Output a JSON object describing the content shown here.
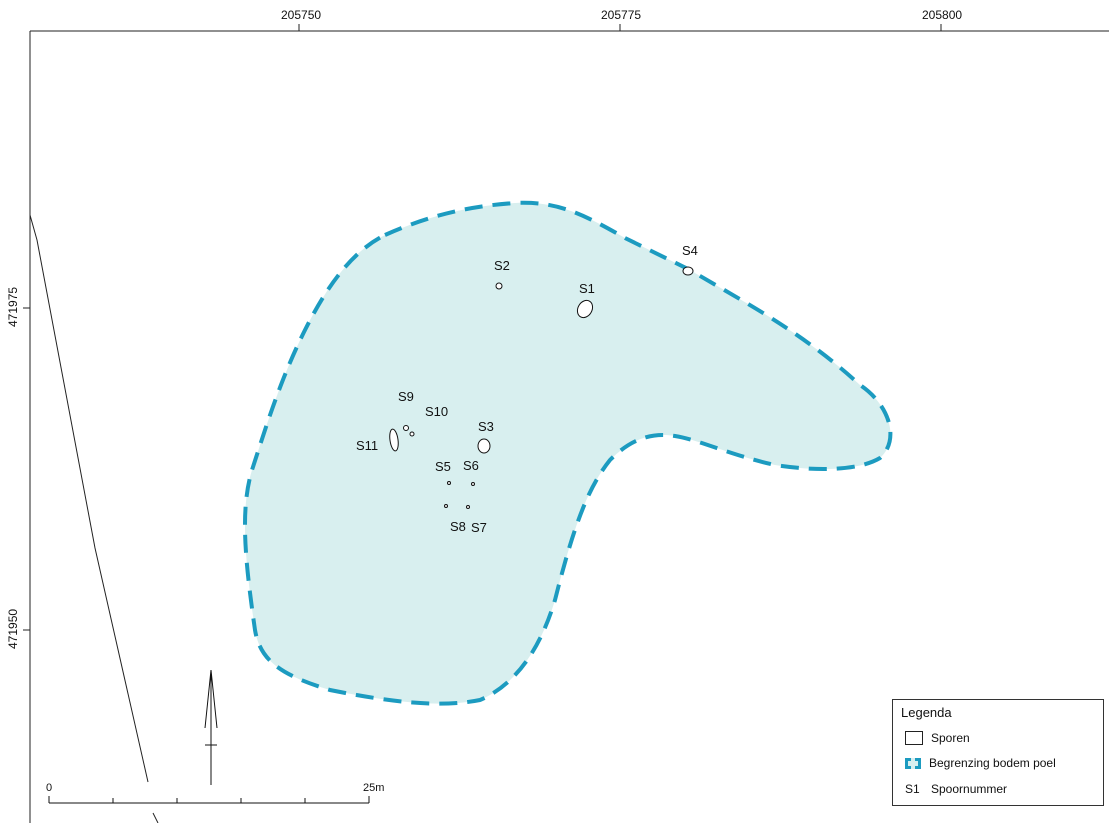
{
  "axes": {
    "x_ticks": [
      "205750",
      "205775",
      "205800"
    ],
    "y_ticks": [
      "471975",
      "471950"
    ]
  },
  "features": {
    "labels": [
      "S1",
      "S2",
      "S3",
      "S4",
      "S5",
      "S6",
      "S7",
      "S8",
      "S9",
      "S10",
      "S11"
    ]
  },
  "scale_bar": {
    "start": "0",
    "end": "25m"
  },
  "legend": {
    "title": "Legenda",
    "items": [
      {
        "symbol": "box",
        "label": "Sporen"
      },
      {
        "symbol": "poel",
        "label": "Begrenzing bodem poel"
      },
      {
        "symbol": "text",
        "symbol_text": "S1",
        "label": "Spoornummer"
      }
    ]
  },
  "colors": {
    "poel_fill": "#d8efef",
    "poel_border": "#1c9bc0",
    "frame": "#222222"
  }
}
